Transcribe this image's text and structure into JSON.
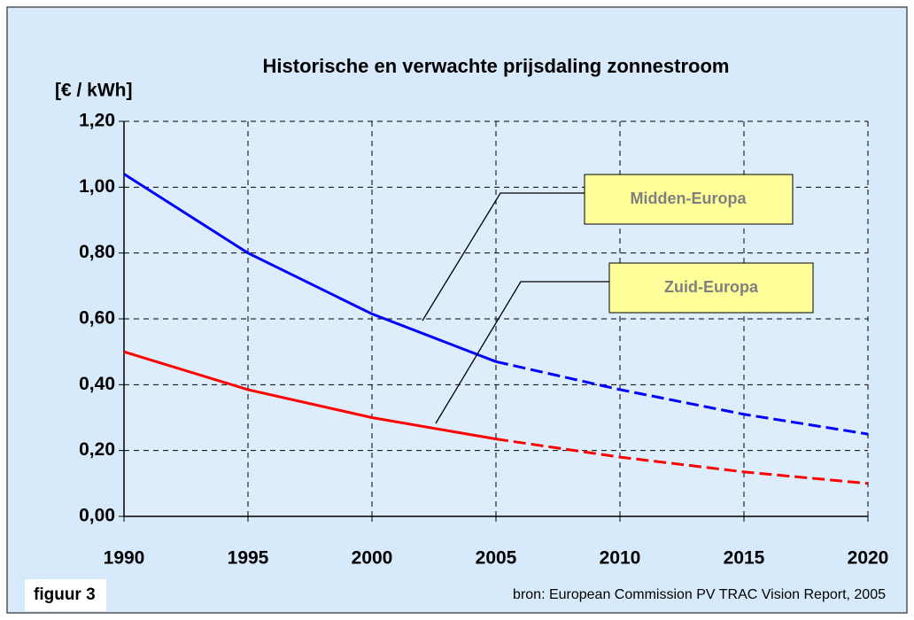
{
  "chart_data": {
    "type": "line",
    "title": "Historische en verwachte prijsdaling zonnestroom",
    "y_label": "[€ / kWh]",
    "annotations": [
      "figuur 3",
      "bron: European Commission PV TRAC Vision Report, 2005"
    ],
    "x": [
      1990,
      1995,
      2000,
      2005,
      2010,
      2015,
      2020
    ],
    "series": [
      {
        "name": "Midden-Europa",
        "color": "#0000ff",
        "values": [
          1.04,
          0.8,
          0.615,
          0.47,
          0.385,
          0.31,
          0.25
        ]
      },
      {
        "name": "Zuid-Europa",
        "color": "#ff0000",
        "values": [
          0.5,
          0.385,
          0.3,
          0.235,
          0.18,
          0.135,
          0.1
        ]
      }
    ],
    "dashed_from": 2005,
    "xlim": [
      1990,
      2020
    ],
    "xticks": [
      1990,
      1995,
      2000,
      2005,
      2010,
      2015,
      2020
    ],
    "ylim": [
      0,
      1.2
    ],
    "yticks": [
      {
        "value": 0,
        "label": "0,00"
      },
      {
        "value": 0.2,
        "label": "0,20"
      },
      {
        "value": 0.4,
        "label": "0,40"
      },
      {
        "value": 0.6,
        "label": "0,60"
      },
      {
        "value": 0.8,
        "label": "0,80"
      },
      {
        "value": 1.0,
        "label": "1,00"
      },
      {
        "value": 1.2,
        "label": "1,20"
      }
    ],
    "grid": true
  }
}
